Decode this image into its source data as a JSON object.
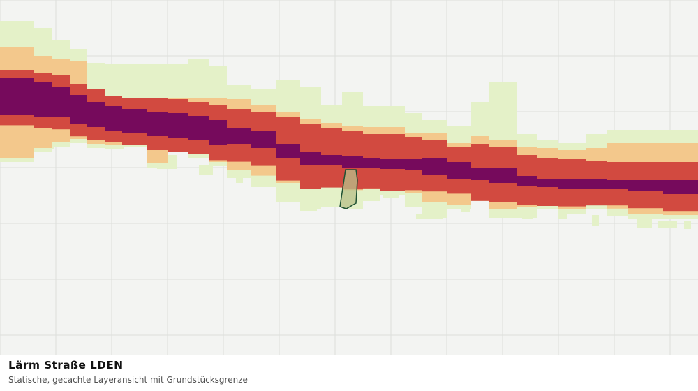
{
  "map": {
    "title": "Lärm Straße LDEN",
    "subtitle": "Statische, gecachte Layeransicht mit Grundstücksgrenze",
    "colors": {
      "background": "#f3f4f2",
      "grid": "#dcdedb",
      "band_lightest": "#e4f1c8",
      "band_light": "#f3c88c",
      "band_mid": "#d24a40",
      "band_core": "#760a5c",
      "parcel_fill": "#b8c089",
      "parcel_stroke": "#1f5234"
    },
    "legend_classes": [
      "band_lightest",
      "band_light",
      "band_mid",
      "band_core"
    ]
  }
}
